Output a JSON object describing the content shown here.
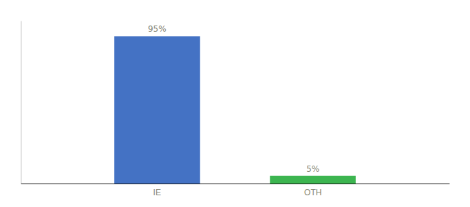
{
  "chart_data": {
    "type": "bar",
    "categories": [
      "IE",
      "OTH"
    ],
    "values": [
      95,
      5
    ],
    "value_labels": [
      "95%",
      "5%"
    ],
    "colors": [
      "#4472c4",
      "#3cb550"
    ],
    "ylim": [
      0,
      105
    ],
    "data_labels": true,
    "tick_labels": "x",
    "grid": false
  }
}
